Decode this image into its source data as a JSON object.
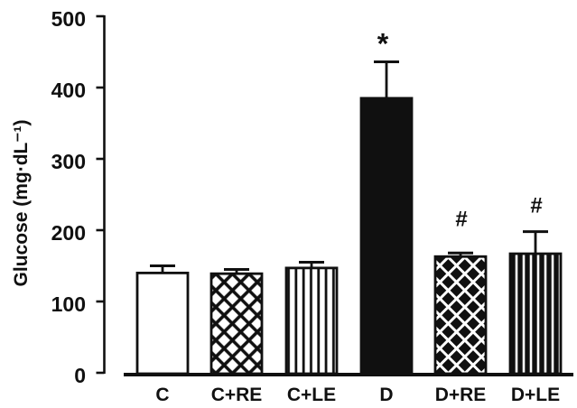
{
  "chart_data": {
    "type": "bar",
    "title": "",
    "xlabel": "",
    "ylabel": "Glucose (mg·dL⁻¹)",
    "ylim": [
      0,
      500
    ],
    "yticks": [
      0,
      100,
      200,
      300,
      400,
      500
    ],
    "grid": false,
    "legend": "none",
    "categories": [
      "C",
      "C+RE",
      "C+LE",
      "D",
      "D+RE",
      "D+LE"
    ],
    "values": [
      140,
      139,
      147,
      385,
      163,
      167
    ],
    "errors": [
      10,
      6,
      8,
      51,
      5,
      31
    ],
    "error_bars": "upper only, capped",
    "annotations": [
      "",
      "",
      "",
      "*",
      "#",
      "#"
    ],
    "bar_styles": [
      "plain-white",
      "crosshatch-light",
      "vlines-light",
      "solid-black",
      "crosshatch-dark",
      "vlines-dark"
    ],
    "colors": {
      "foreground": "#101010",
      "background": "#ffffff"
    }
  }
}
